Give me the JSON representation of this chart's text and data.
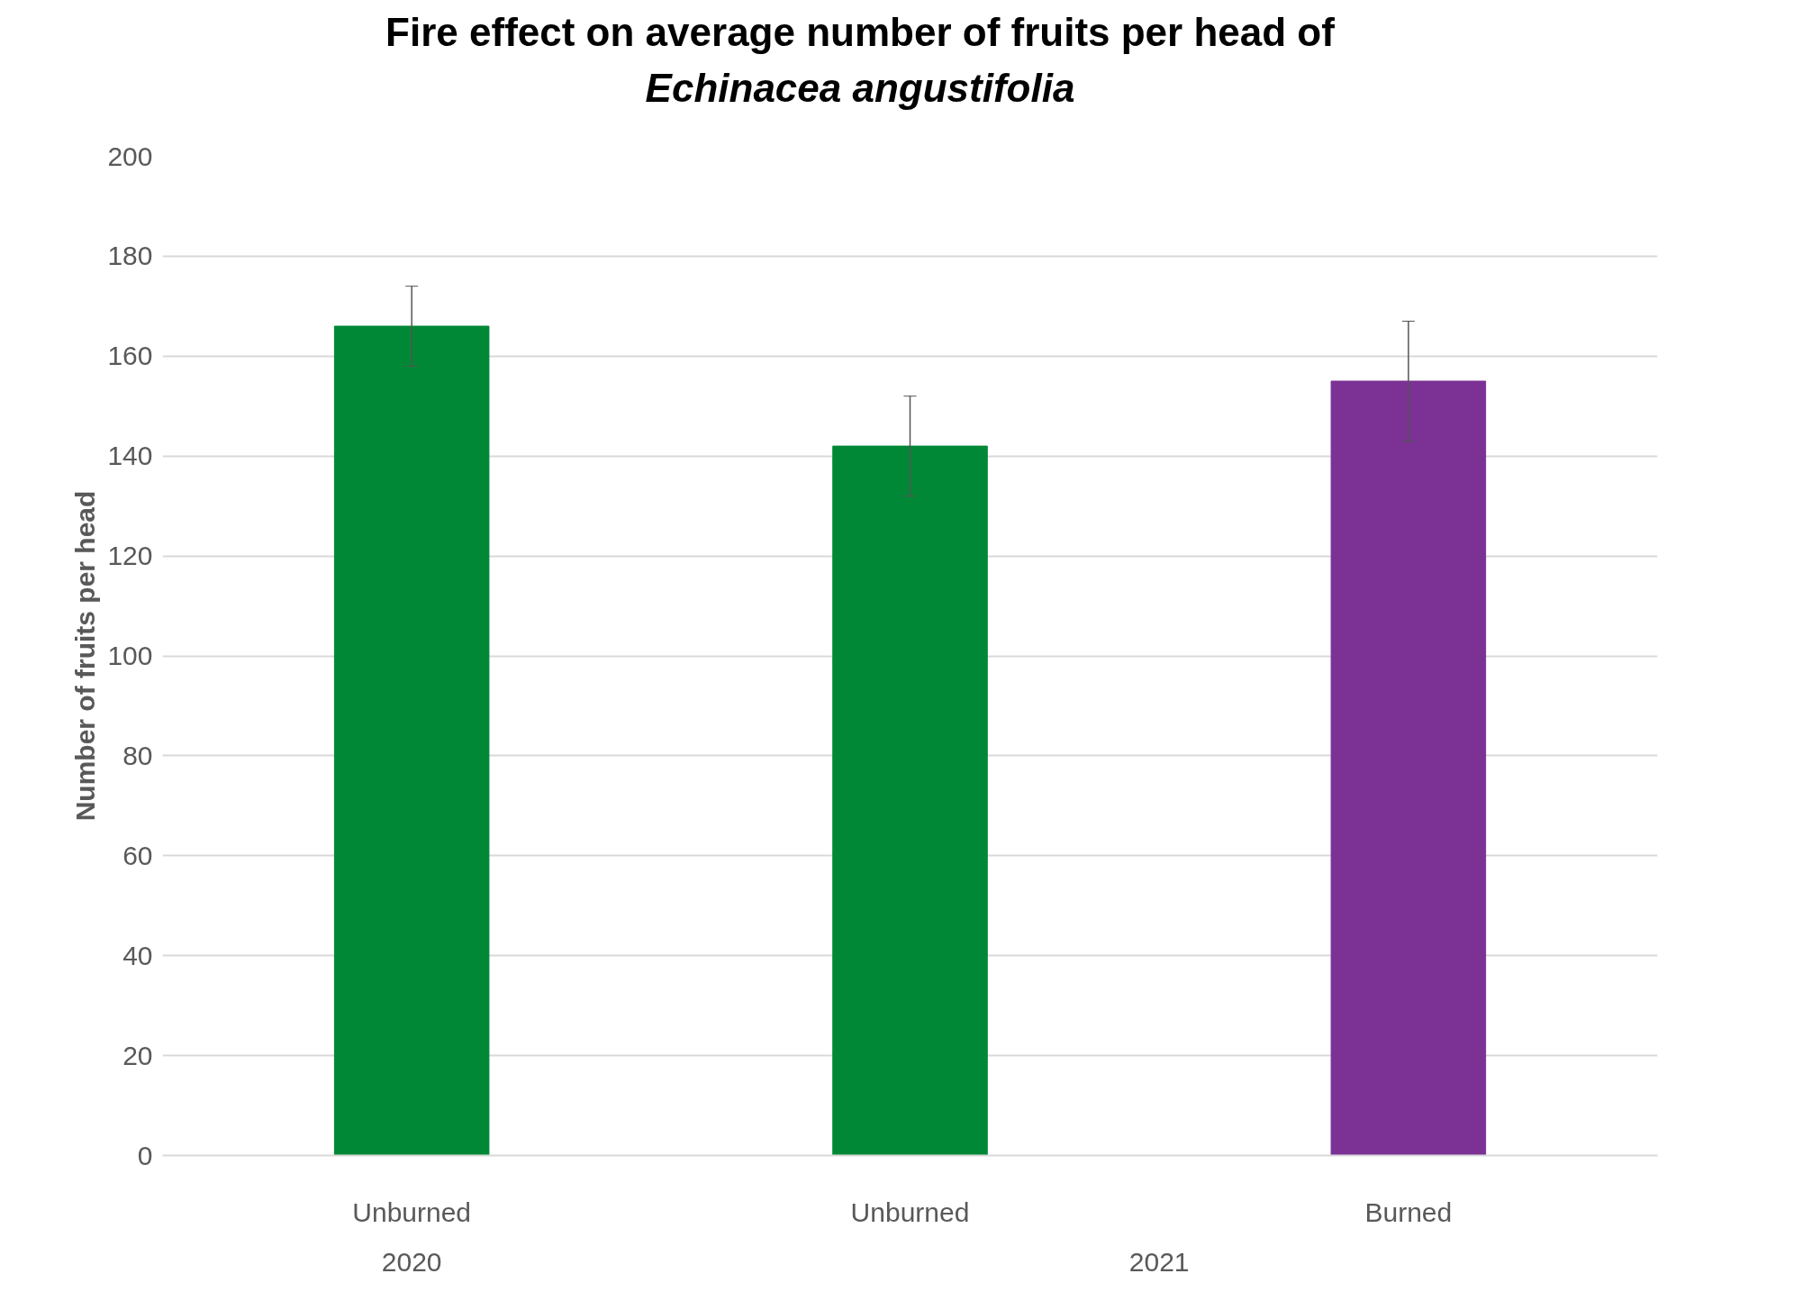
{
  "chart_data": {
    "type": "bar",
    "title": "Fire effect on average number of fruits per head of\nEchinacea angustifolia",
    "ylabel": "Number of fruits per head",
    "categories": [
      "Unburned",
      "Unburned",
      "Burned"
    ],
    "values": [
      166,
      142,
      155
    ],
    "colors": [
      "#008837",
      "#008837",
      "#7b3294"
    ],
    "errors": [
      8,
      10,
      12
    ],
    "annotations": [
      "2020",
      "2021"
    ],
    "ylim": [
      0,
      200
    ],
    "yticks": [
      0,
      20,
      40,
      60,
      80,
      100,
      120,
      140,
      160,
      180,
      200
    ],
    "grid": "y"
  }
}
